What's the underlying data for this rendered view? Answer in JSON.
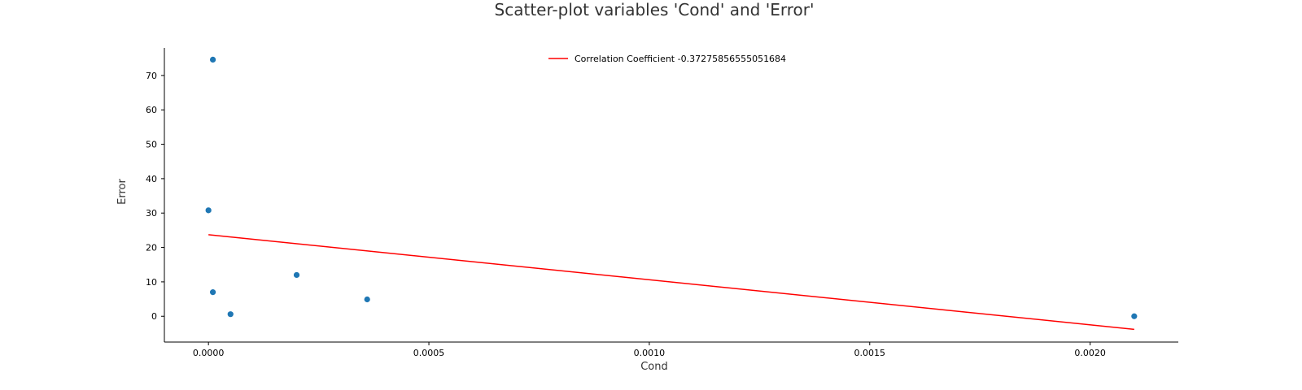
{
  "chart_data": {
    "type": "scatter",
    "title": "Scatter-plot variables 'Cond' and 'Error'",
    "xlabel": "Cond",
    "ylabel": "Error",
    "xlim": [
      -0.0001,
      0.0022
    ],
    "ylim": [
      -7.5,
      78
    ],
    "x_ticks": [
      0.0,
      0.0005,
      0.001,
      0.0015,
      0.002
    ],
    "x_tick_labels": [
      "0.0000",
      "0.0005",
      "0.0010",
      "0.0015",
      "0.0020"
    ],
    "y_ticks": [
      0,
      10,
      20,
      30,
      40,
      50,
      60,
      70
    ],
    "y_tick_labels": [
      "0",
      "10",
      "20",
      "30",
      "40",
      "50",
      "60",
      "70"
    ],
    "grid": false,
    "legend_position": "top-center",
    "points": [
      {
        "x": 1e-05,
        "y": 74.6
      },
      {
        "x": 0.0,
        "y": 30.8
      },
      {
        "x": 1e-05,
        "y": 7.0
      },
      {
        "x": 5e-05,
        "y": 0.6
      },
      {
        "x": 0.0002,
        "y": 12.0
      },
      {
        "x": 0.00036,
        "y": 4.9
      },
      {
        "x": 0.0021,
        "y": 0.0
      }
    ],
    "point_color": "#1f77b4",
    "trend_line": {
      "label": "Correlation Coefficient -0.37275856555051684",
      "color": "#ff0000",
      "x": [
        0.0,
        0.0021
      ],
      "y": [
        23.7,
        -3.8
      ]
    }
  }
}
